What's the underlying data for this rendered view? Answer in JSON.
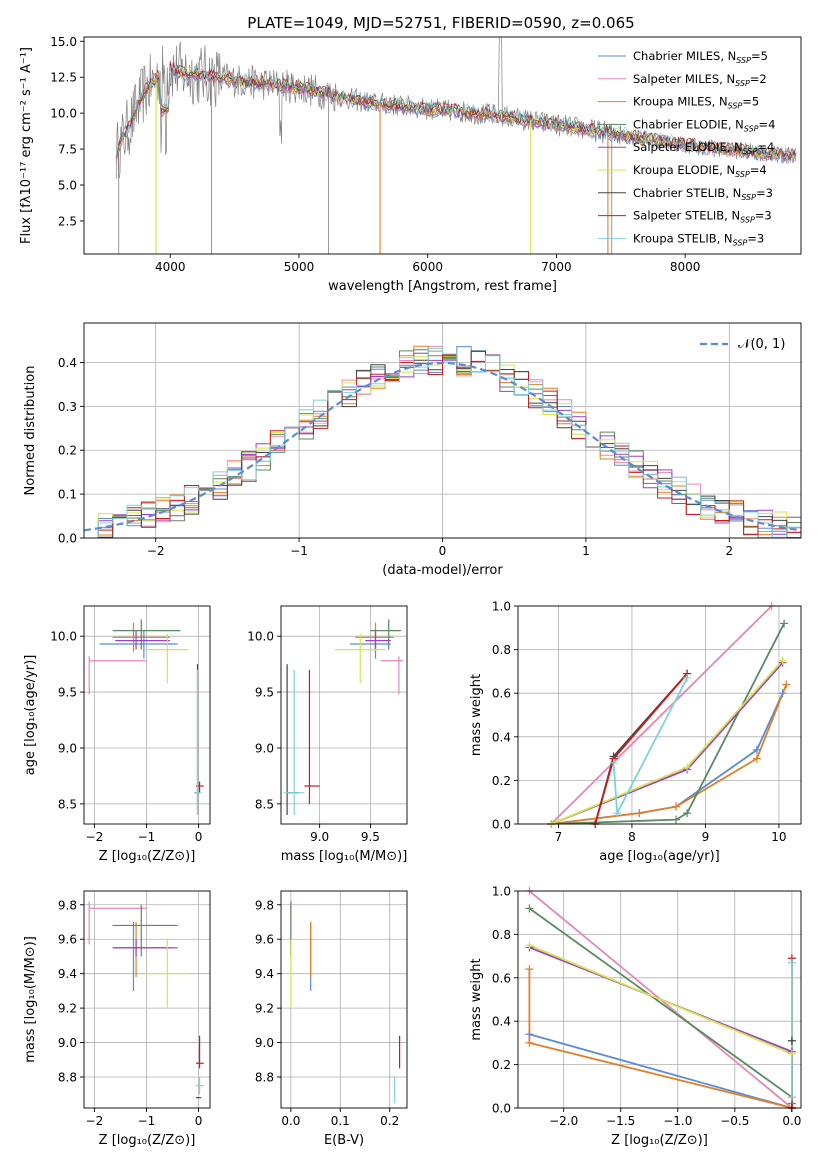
{
  "title": "PLATE=1049, MJD=52751, FIBERID=0590, z=0.065",
  "colors": {
    "chabrier_miles": "#5b8bd6",
    "salpeter_miles": "#e887b7",
    "kroupa_miles": "#e0802a",
    "chabrier_elodie": "#5a8a5f",
    "salpeter_elodie": "#9c3fc7",
    "kroupa_elodie": "#d6e44a",
    "chabrier_stelib": "#444444",
    "salpeter_stelib": "#c41e1e",
    "kroupa_stelib": "#7fd3d8",
    "data": "#808080",
    "gaussian": "#5b8bd6"
  },
  "legend": [
    {
      "text": "Chabrier MILES, N",
      "sub": "SSP",
      "suffix": "=5"
    },
    {
      "text": "Salpeter MILES, N",
      "sub": "SSP",
      "suffix": "=2"
    },
    {
      "text": "Kroupa MILES, N",
      "sub": "SSP",
      "suffix": "=5"
    },
    {
      "text": "Chabrier ELODIE, N",
      "sub": "SSP",
      "suffix": "=4"
    },
    {
      "text": "Salpeter ELODIE, N",
      "sub": "SSP",
      "suffix": "=4"
    },
    {
      "text": "Kroupa ELODIE, N",
      "sub": "SSP",
      "suffix": "=4"
    },
    {
      "text": "Chabrier STELIB, N",
      "sub": "SSP",
      "suffix": "=3"
    },
    {
      "text": "Salpeter STELIB, N",
      "sub": "SSP",
      "suffix": "=3"
    },
    {
      "text": "Kroupa STELIB, N",
      "sub": "SSP",
      "suffix": "=3"
    }
  ],
  "gauss_legend": "𝒩(0, 1)",
  "chart_data": [
    {
      "type": "line",
      "id": "spectrum",
      "xlabel": "wavelength [Angstrom, rest frame]",
      "ylabel": "Flux [fλ10⁻¹⁷ erg cm⁻² s⁻¹ A⁻¹]",
      "xlim": [
        3330,
        8900
      ],
      "ylim": [
        0.2,
        15.3
      ],
      "xticks": [
        4000,
        5000,
        6000,
        7000,
        8000
      ],
      "yticks": [
        2.5,
        5.0,
        7.5,
        10.0,
        12.5,
        15.0
      ],
      "continuum": {
        "x": [
          3580,
          3700,
          3800,
          3900,
          4000,
          4100,
          4300,
          4500,
          4800,
          5000,
          5500,
          6000,
          6500,
          7000,
          7500,
          8000,
          8500,
          8870
        ],
        "y": [
          7.2,
          9.5,
          11.5,
          12.5,
          13.1,
          12.8,
          12.6,
          12.3,
          12.0,
          11.8,
          10.8,
          10.3,
          9.9,
          9.2,
          8.5,
          7.8,
          7.3,
          7.0
        ]
      }
    },
    {
      "type": "line",
      "id": "residuals",
      "xlabel": "(data-model)/error",
      "ylabel": "Normed distribution",
      "xlim": [
        -2.5,
        2.5
      ],
      "ylim": [
        0,
        0.49
      ],
      "xticks": [
        -2,
        -1,
        0,
        1,
        2
      ],
      "yticks": [
        0.0,
        0.1,
        0.2,
        0.3,
        0.4
      ],
      "grid": true,
      "bin_width": 0.1
    },
    {
      "type": "scatter",
      "id": "age_vs_Z",
      "xlabel": "Z [log₁₀(Z/Z⊙)]",
      "ylabel": "age  [log₁₀(age/yr)]",
      "xlim": [
        -2.2,
        0.22
      ],
      "ylim": [
        8.32,
        10.27
      ],
      "xticks": [
        -2,
        -1,
        0
      ],
      "yticks": [
        8.5,
        9.0,
        9.5,
        10.0
      ],
      "grid": true,
      "points": [
        {
          "m": "chabrier_miles",
          "x": -1.05,
          "y": 9.93,
          "xe": [
            -1.9,
            -0.4
          ],
          "ye": [
            9.8,
            10.05
          ]
        },
        {
          "m": "salpeter_miles",
          "x": -2.1,
          "y": 9.78,
          "xe": [
            -2.1,
            -1.0
          ],
          "ye": [
            9.48,
            9.82
          ]
        },
        {
          "m": "kroupa_miles",
          "x": -1.25,
          "y": 9.99,
          "xe": [
            -1.65,
            -0.55
          ],
          "ye": [
            9.86,
            10.12
          ]
        },
        {
          "m": "chabrier_elodie",
          "x": -1.1,
          "y": 10.05,
          "xe": [
            -1.65,
            -0.35
          ],
          "ye": [
            9.88,
            10.15
          ]
        },
        {
          "m": "salpeter_elodie",
          "x": -1.2,
          "y": 9.96,
          "xe": [
            -1.6,
            -0.55
          ],
          "ye": [
            9.88,
            10.05
          ]
        },
        {
          "m": "kroupa_elodie",
          "x": -0.6,
          "y": 9.88,
          "xe": [
            -1.05,
            -0.2
          ],
          "ye": [
            9.58,
            10.02
          ]
        },
        {
          "m": "chabrier_stelib",
          "x": -0.02,
          "y": 8.6,
          "xe": [
            -0.08,
            0.03
          ],
          "ye": [
            8.4,
            9.75
          ]
        },
        {
          "m": "salpeter_stelib",
          "x": 0.02,
          "y": 8.66,
          "xe": [
            -0.05,
            0.1
          ],
          "ye": [
            8.6,
            8.7
          ]
        },
        {
          "m": "kroupa_stelib",
          "x": -0.02,
          "y": 8.6,
          "xe": [
            -0.08,
            0.05
          ],
          "ye": [
            8.4,
            9.7
          ]
        }
      ]
    },
    {
      "type": "scatter",
      "id": "age_vs_mass",
      "xlabel": "mass [log₁₀(M/M⊙)]",
      "ylabel": "",
      "xlim": [
        8.62,
        9.86
      ],
      "ylim": [
        8.32,
        10.27
      ],
      "xticks": [
        9.0,
        9.5
      ],
      "yticks": [
        8.5,
        9.0,
        9.5,
        10.0
      ],
      "grid": true,
      "points": [
        {
          "m": "chabrier_miles",
          "x": 9.55,
          "y": 9.93,
          "xe": [
            9.3,
            9.7
          ],
          "ye": [
            9.8,
            10.05
          ]
        },
        {
          "m": "salpeter_miles",
          "x": 9.78,
          "y": 9.78,
          "xe": [
            9.6,
            9.82
          ],
          "ye": [
            9.48,
            9.82
          ]
        },
        {
          "m": "kroupa_miles",
          "x": 9.55,
          "y": 9.99,
          "xe": [
            9.35,
            9.73
          ],
          "ye": [
            9.86,
            10.12
          ]
        },
        {
          "m": "chabrier_elodie",
          "x": 9.68,
          "y": 10.05,
          "xe": [
            9.5,
            9.8
          ],
          "ye": [
            9.88,
            10.15
          ]
        },
        {
          "m": "salpeter_elodie",
          "x": 9.55,
          "y": 9.96,
          "xe": [
            9.45,
            9.7
          ],
          "ye": [
            9.88,
            10.05
          ]
        },
        {
          "m": "kroupa_elodie",
          "x": 9.4,
          "y": 9.88,
          "xe": [
            9.15,
            9.65
          ],
          "ye": [
            9.58,
            10.02
          ]
        },
        {
          "m": "chabrier_stelib",
          "x": 8.68,
          "y": 8.6,
          "xe": [
            8.68,
            8.8
          ],
          "ye": [
            8.4,
            9.75
          ]
        },
        {
          "m": "salpeter_stelib",
          "x": 8.9,
          "y": 8.66,
          "xe": [
            8.85,
            9.0
          ],
          "ye": [
            8.5,
            9.7
          ]
        },
        {
          "m": "kroupa_stelib",
          "x": 8.75,
          "y": 8.6,
          "xe": [
            8.65,
            8.85
          ],
          "ye": [
            8.4,
            9.7
          ]
        }
      ]
    },
    {
      "type": "line",
      "id": "weight_vs_age",
      "xlabel": "age  [log₁₀(age/yr)]",
      "ylabel": "mass weight",
      "xlim": [
        6.45,
        10.3
      ],
      "ylim": [
        0,
        1
      ],
      "xticks": [
        7,
        8,
        9,
        10
      ],
      "yticks": [
        0.0,
        0.2,
        0.4,
        0.6,
        0.8,
        1.0
      ],
      "grid": true,
      "series": [
        {
          "m": "chabrier_miles",
          "x": [
            6.9,
            8.1,
            8.6,
            9.7,
            10.05
          ],
          "y": [
            0.0,
            0.05,
            0.08,
            0.34,
            0.6
          ]
        },
        {
          "m": "salpeter_miles",
          "x": [
            6.9,
            9.9
          ],
          "y": [
            0.0,
            1.0
          ]
        },
        {
          "m": "kroupa_miles",
          "x": [
            6.9,
            8.1,
            8.6,
            9.7,
            10.1
          ],
          "y": [
            0.0,
            0.05,
            0.08,
            0.3,
            0.64
          ]
        },
        {
          "m": "chabrier_elodie",
          "x": [
            6.9,
            8.6,
            8.75,
            10.07
          ],
          "y": [
            0.0,
            0.02,
            0.05,
            0.92
          ]
        },
        {
          "m": "salpeter_elodie",
          "x": [
            6.9,
            8.75,
            10.05
          ],
          "y": [
            0.0,
            0.25,
            0.74
          ]
        },
        {
          "m": "kroupa_elodie",
          "x": [
            6.9,
            8.75,
            10.05
          ],
          "y": [
            0.0,
            0.26,
            0.75
          ]
        },
        {
          "m": "chabrier_stelib",
          "x": [
            7.5,
            7.75,
            8.75
          ],
          "y": [
            0.0,
            0.31,
            0.69
          ]
        },
        {
          "m": "salpeter_stelib",
          "x": [
            7.5,
            7.75,
            8.75
          ],
          "y": [
            0.0,
            0.3,
            0.69
          ]
        },
        {
          "m": "kroupa_stelib",
          "x": [
            7.75,
            7.8,
            8.75
          ],
          "y": [
            0.28,
            0.05,
            0.67
          ]
        }
      ]
    },
    {
      "type": "scatter",
      "id": "mass_vs_Z",
      "xlabel": "Z [log₁₀(Z/Z⊙)]",
      "ylabel": "mass [log₁₀(M/M⊙)]",
      "xlim": [
        -2.2,
        0.22
      ],
      "ylim": [
        8.62,
        9.88
      ],
      "xticks": [
        -2,
        -1,
        0
      ],
      "yticks": [
        8.8,
        9.0,
        9.2,
        9.4,
        9.6,
        9.8
      ],
      "grid": true,
      "points": [
        {
          "m": "chabrier_miles",
          "x": -1.25,
          "y": 9.55,
          "xe": [
            -1.6,
            -0.55
          ],
          "ye": [
            9.3,
            9.7
          ]
        },
        {
          "m": "salpeter_miles",
          "x": -2.1,
          "y": 9.78,
          "xe": [
            -2.1,
            -1.0
          ],
          "ye": [
            9.57,
            9.82
          ]
        },
        {
          "m": "kroupa_miles",
          "x": -1.2,
          "y": 9.55,
          "xe": [
            -1.65,
            -0.5
          ],
          "ye": [
            9.38,
            9.7
          ]
        },
        {
          "m": "chabrier_elodie",
          "x": -1.1,
          "y": 9.68,
          "xe": [
            -1.65,
            -0.4
          ],
          "ye": [
            9.5,
            9.8
          ]
        },
        {
          "m": "salpeter_elodie",
          "x": -1.2,
          "y": 9.55,
          "xe": [
            -1.65,
            -0.4
          ],
          "ye": [
            9.5,
            9.6
          ]
        },
        {
          "m": "kroupa_elodie",
          "x": -0.6,
          "y": 9.4,
          "xe": [
            -1.05,
            -0.2
          ],
          "ye": [
            9.2,
            9.6
          ]
        },
        {
          "m": "chabrier_stelib",
          "x": 0.0,
          "y": 8.68,
          "xe": [
            -0.05,
            0.05
          ],
          "ye": [
            8.68,
            8.68
          ]
        },
        {
          "m": "salpeter_stelib",
          "x": 0.02,
          "y": 8.88,
          "xe": [
            -0.05,
            0.1
          ],
          "ye": [
            8.85,
            9.04
          ]
        },
        {
          "m": "kroupa_stelib",
          "x": 0.02,
          "y": 8.75,
          "xe": [
            -0.05,
            0.1
          ],
          "ye": [
            8.7,
            8.8
          ]
        }
      ]
    },
    {
      "type": "scatter",
      "id": "mass_vs_ebv",
      "xlabel": "E(B-V)",
      "ylabel": "",
      "xlim": [
        -0.02,
        0.235
      ],
      "ylim": [
        8.62,
        9.88
      ],
      "xticks": [
        0.0,
        0.1,
        0.2
      ],
      "yticks": [
        8.8,
        9.0,
        9.2,
        9.4,
        9.6,
        9.8
      ],
      "grid": true,
      "points": [
        {
          "m": "chabrier_miles",
          "x": 0.04,
          "y": 9.55,
          "xe": [
            0.04,
            0.04
          ],
          "ye": [
            9.3,
            9.7
          ]
        },
        {
          "m": "salpeter_miles",
          "x": 0.0,
          "y": 9.78,
          "xe": [
            0.0,
            0.0
          ],
          "ye": [
            9.57,
            9.82
          ]
        },
        {
          "m": "kroupa_miles",
          "x": 0.04,
          "y": 9.55,
          "xe": [
            0.04,
            0.04
          ],
          "ye": [
            9.38,
            9.7
          ]
        },
        {
          "m": "chabrier_elodie",
          "x": 0.0,
          "y": 9.68,
          "xe": [
            0.0,
            0.0
          ],
          "ye": [
            9.5,
            9.82
          ]
        },
        {
          "m": "salpeter_elodie",
          "x": 0.0,
          "y": 9.55,
          "xe": [
            0.0,
            0.0
          ],
          "ye": [
            9.5,
            9.6
          ]
        },
        {
          "m": "kroupa_elodie",
          "x": 0.0,
          "y": 9.4,
          "xe": [
            0.0,
            0.0
          ],
          "ye": [
            9.2,
            9.6
          ]
        },
        {
          "m": "chabrier_stelib",
          "x": 0.21,
          "y": 8.68,
          "xe": [
            0.21,
            0.21
          ],
          "ye": [
            8.68,
            8.68
          ]
        },
        {
          "m": "salpeter_stelib",
          "x": 0.22,
          "y": 8.88,
          "xe": [
            0.22,
            0.22
          ],
          "ye": [
            8.85,
            9.04
          ]
        },
        {
          "m": "kroupa_stelib",
          "x": 0.21,
          "y": 8.75,
          "xe": [
            0.21,
            0.21
          ],
          "ye": [
            8.65,
            8.8
          ]
        }
      ]
    },
    {
      "type": "line",
      "id": "weight_vs_Z",
      "xlabel": "Z [log₁₀(Z/Z⊙)]",
      "ylabel": "mass weight",
      "xlim": [
        -2.4,
        0.08
      ],
      "ylim": [
        0,
        1
      ],
      "xticks": [
        -2.0,
        -1.5,
        -1.0,
        -0.5,
        0.0
      ],
      "yticks": [
        0.0,
        0.2,
        0.4,
        0.6,
        0.8,
        1.0
      ],
      "grid": true,
      "series": [
        {
          "m": "chabrier_miles",
          "x": [
            -2.3,
            0.0
          ],
          "y": [
            0.34,
            0.0
          ]
        },
        {
          "m": "salpeter_miles",
          "x": [
            -2.3,
            0.0
          ],
          "y": [
            1.0,
            0.0
          ]
        },
        {
          "m": "kroupa_miles",
          "x": [
            -2.3,
            -2.3,
            0.0
          ],
          "y": [
            0.64,
            0.3,
            0.0
          ]
        },
        {
          "m": "chabrier_elodie",
          "x": [
            -2.3,
            0.0,
            0.0
          ],
          "y": [
            0.92,
            0.05,
            0.02
          ]
        },
        {
          "m": "salpeter_elodie",
          "x": [
            -2.3,
            0.0
          ],
          "y": [
            0.74,
            0.26
          ]
        },
        {
          "m": "kroupa_elodie",
          "x": [
            -2.3,
            0.0
          ],
          "y": [
            0.75,
            0.25
          ]
        },
        {
          "m": "chabrier_stelib",
          "x": [
            0.0,
            0.0
          ],
          "y": [
            0.0,
            0.31
          ]
        },
        {
          "m": "salpeter_stelib",
          "x": [
            0.0,
            0.0
          ],
          "y": [
            0.0,
            0.69
          ]
        },
        {
          "m": "kroupa_stelib",
          "x": [
            0.0,
            0.0
          ],
          "y": [
            0.05,
            0.67
          ]
        }
      ]
    }
  ]
}
